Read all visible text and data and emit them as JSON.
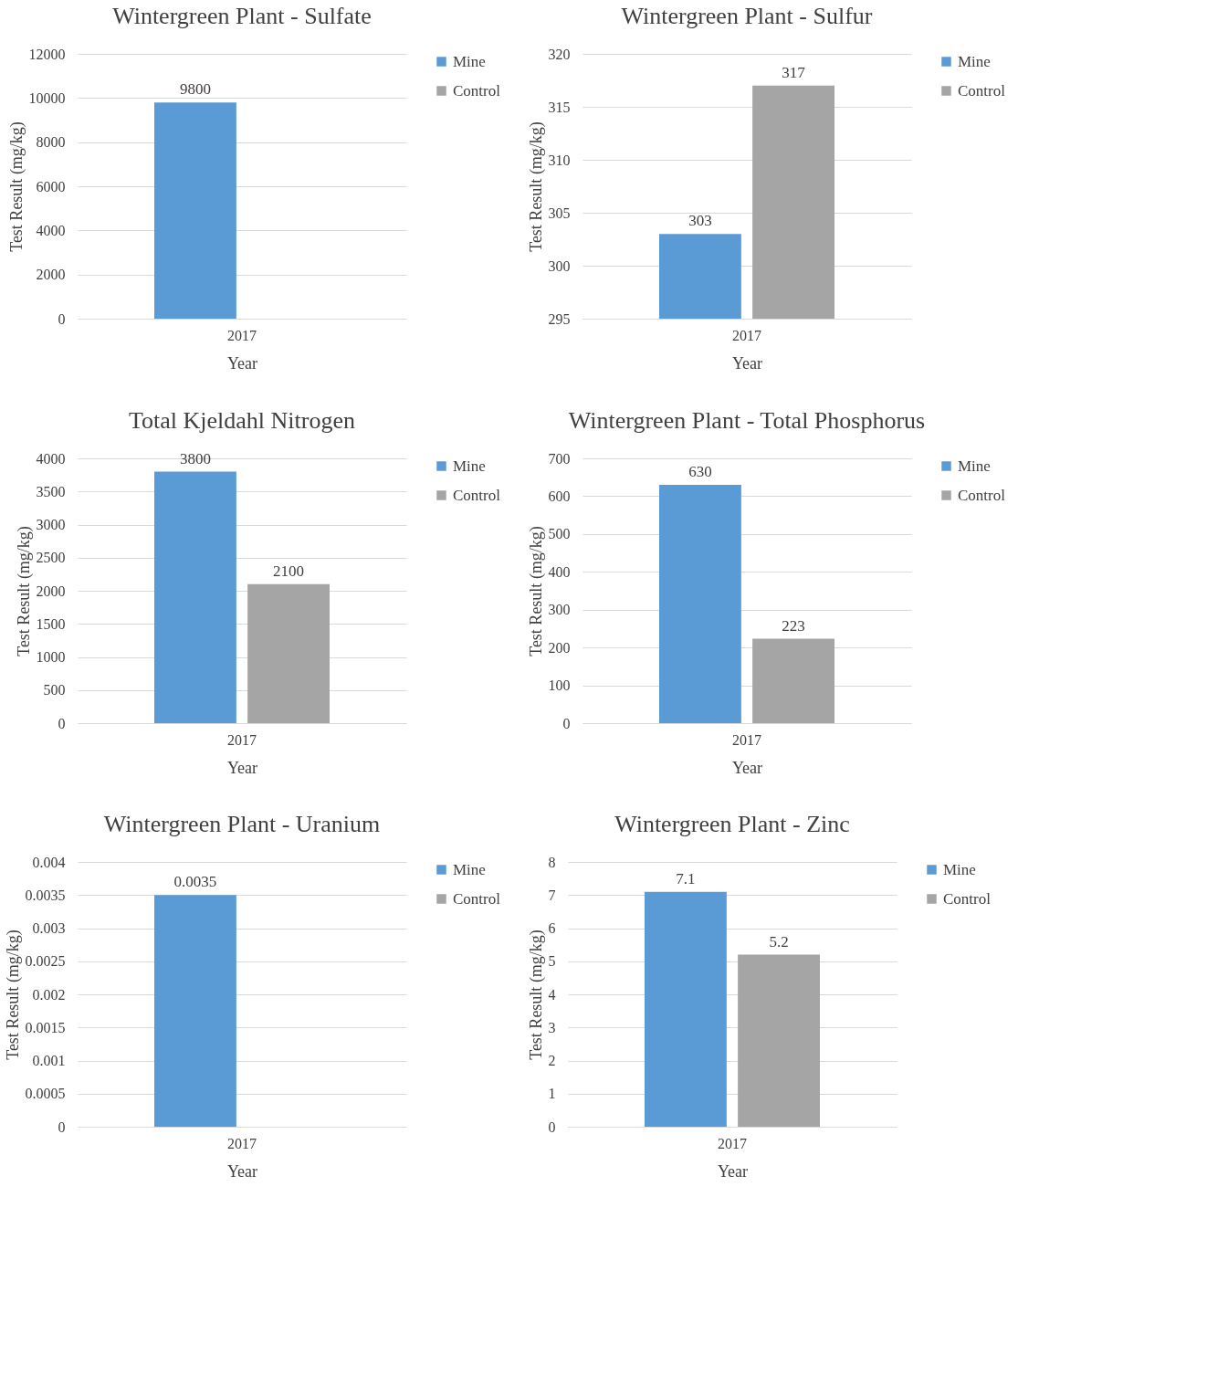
{
  "chart_data": [
    {
      "type": "bar",
      "title": "Wintergreen Plant - Sulfate",
      "xlabel": "Year",
      "ylabel": "Test Result (mg/kg)",
      "categories": [
        "2017"
      ],
      "ylim": [
        0,
        12000
      ],
      "yticks": [
        0,
        2000,
        4000,
        6000,
        8000,
        10000,
        12000
      ],
      "grid": "y",
      "legend": "right",
      "data_labels": true,
      "series": [
        {
          "name": "Mine",
          "color": "#5b9bd5",
          "values": [
            9800
          ]
        },
        {
          "name": "Control",
          "color": "#a5a5a5",
          "values": [
            null
          ]
        }
      ]
    },
    {
      "type": "bar",
      "title": "Wintergreen Plant - Sulfur",
      "xlabel": "Year",
      "ylabel": "Test Result (mg/kg)",
      "categories": [
        "2017"
      ],
      "ylim": [
        295,
        320
      ],
      "yticks": [
        295,
        300,
        305,
        310,
        315,
        320
      ],
      "grid": "y",
      "legend": "right",
      "data_labels": true,
      "series": [
        {
          "name": "Mine",
          "color": "#5b9bd5",
          "values": [
            303
          ]
        },
        {
          "name": "Control",
          "color": "#a5a5a5",
          "values": [
            317
          ]
        }
      ]
    },
    {
      "type": "bar",
      "title": "Total Kjeldahl Nitrogen",
      "xlabel": "Year",
      "ylabel": "Test Result (mg/kg)",
      "categories": [
        "2017"
      ],
      "ylim": [
        0,
        4000
      ],
      "yticks": [
        0,
        500,
        1000,
        1500,
        2000,
        2500,
        3000,
        3500,
        4000
      ],
      "grid": "y",
      "legend": "right",
      "data_labels": true,
      "series": [
        {
          "name": "Mine",
          "color": "#5b9bd5",
          "values": [
            3800
          ]
        },
        {
          "name": "Control",
          "color": "#a5a5a5",
          "values": [
            2100
          ]
        }
      ]
    },
    {
      "type": "bar",
      "title": "Wintergreen Plant - Total Phosphorus",
      "xlabel": "Year",
      "ylabel": "Test Result (mg/kg)",
      "categories": [
        "2017"
      ],
      "ylim": [
        0,
        700
      ],
      "yticks": [
        0,
        100,
        200,
        300,
        400,
        500,
        600,
        700
      ],
      "grid": "y",
      "legend": "right",
      "data_labels": true,
      "series": [
        {
          "name": "Mine",
          "color": "#5b9bd5",
          "values": [
            630
          ]
        },
        {
          "name": "Control",
          "color": "#a5a5a5",
          "values": [
            223
          ]
        }
      ]
    },
    {
      "type": "bar",
      "title": "Wintergreen Plant - Uranium",
      "xlabel": "Year",
      "ylabel": "Test Result (mg/kg)",
      "categories": [
        "2017"
      ],
      "ylim": [
        0,
        0.004
      ],
      "yticks": [
        0,
        0.0005,
        0.001,
        0.0015,
        0.002,
        0.0025,
        0.003,
        0.0035,
        0.004
      ],
      "grid": "y",
      "legend": "right",
      "data_labels": true,
      "series": [
        {
          "name": "Mine",
          "color": "#5b9bd5",
          "values": [
            0.0035
          ]
        },
        {
          "name": "Control",
          "color": "#a5a5a5",
          "values": [
            null
          ]
        }
      ]
    },
    {
      "type": "bar",
      "title": "Wintergreen Plant - Zinc",
      "xlabel": "Year",
      "ylabel": "Test Result (mg/kg)",
      "categories": [
        "2017"
      ],
      "ylim": [
        0,
        8
      ],
      "yticks": [
        0,
        1,
        2,
        3,
        4,
        5,
        6,
        7,
        8
      ],
      "grid": "y",
      "legend": "right",
      "data_labels": true,
      "series": [
        {
          "name": "Mine",
          "color": "#5b9bd5",
          "values": [
            7.1
          ]
        },
        {
          "name": "Control",
          "color": "#a5a5a5",
          "values": [
            5.2
          ]
        }
      ]
    }
  ]
}
